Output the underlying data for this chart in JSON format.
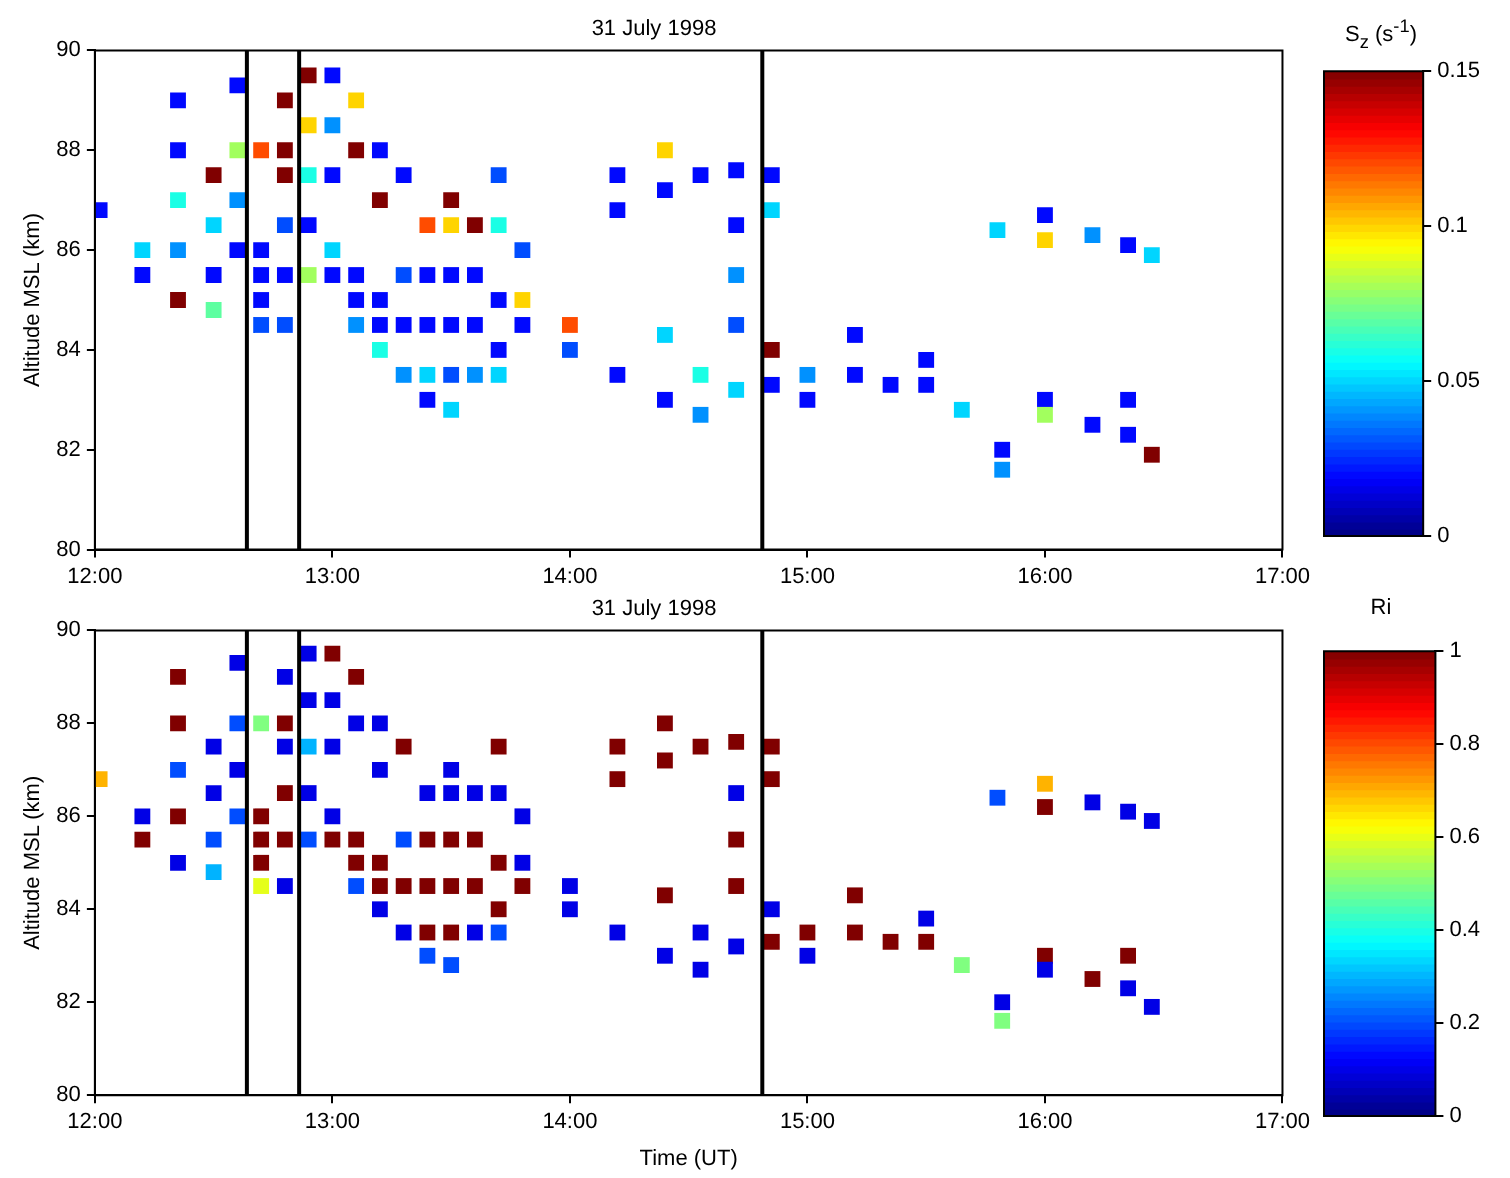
{
  "chart_data": [
    {
      "type": "scatter",
      "title": "31 July 1998",
      "ylabel": "Altitude MSL (km)",
      "clabel": "S$_{z}$ (s$^{-1}$)",
      "marker": "square",
      "grid": false,
      "xlim": [
        12,
        17
      ],
      "xticks": [
        {
          "value": 12,
          "label": "12:00"
        },
        {
          "value": 13,
          "label": "13:00"
        },
        {
          "value": 14,
          "label": "14:00"
        },
        {
          "value": 15,
          "label": "15:00"
        },
        {
          "value": 16,
          "label": "16:00"
        },
        {
          "value": 17,
          "label": "17:00"
        }
      ],
      "ylim": [
        80,
        90
      ],
      "yticks": [
        80,
        82,
        84,
        86,
        88,
        90
      ],
      "clim": [
        0,
        0.15
      ],
      "cticks": [
        0,
        0.05,
        0.1,
        0.15
      ],
      "ref_lines": [
        {
          "axis": "x",
          "value": 12.64,
          "color": "#000000"
        },
        {
          "axis": "x",
          "value": 12.86,
          "color": "#000000"
        },
        {
          "axis": "x",
          "value": 14.81,
          "color": "#000000"
        }
      ],
      "x": [
        12.02,
        12.2,
        12.2,
        12.35,
        12.35,
        12.35,
        12.35,
        12.35,
        12.5,
        12.5,
        12.5,
        12.5,
        12.6,
        12.6,
        12.6,
        12.6,
        12.7,
        12.7,
        12.7,
        12.7,
        12.7,
        12.8,
        12.8,
        12.8,
        12.8,
        12.8,
        12.8,
        12.9,
        12.9,
        12.9,
        12.9,
        12.9,
        13.0,
        13.0,
        13.0,
        13.0,
        13.0,
        13.1,
        13.1,
        13.1,
        13.1,
        13.1,
        13.2,
        13.2,
        13.2,
        13.2,
        13.2,
        13.3,
        13.3,
        13.3,
        13.3,
        13.4,
        13.4,
        13.4,
        13.4,
        13.4,
        13.5,
        13.5,
        13.5,
        13.5,
        13.5,
        13.5,
        13.6,
        13.6,
        13.6,
        13.6,
        13.7,
        13.7,
        13.7,
        13.7,
        13.7,
        13.8,
        13.8,
        13.8,
        14.0,
        14.0,
        14.2,
        14.2,
        14.2,
        14.4,
        14.4,
        14.4,
        14.4,
        14.55,
        14.55,
        14.55,
        14.7,
        14.7,
        14.7,
        14.7,
        14.7,
        14.85,
        14.85,
        14.85,
        14.85,
        15.0,
        15.0,
        15.2,
        15.2,
        15.35,
        15.5,
        15.5,
        15.65,
        15.82,
        15.82,
        15.8,
        16.0,
        16.0,
        16.0,
        16.0,
        16.2,
        16.2,
        16.35,
        16.35,
        16.35,
        16.45,
        16.45
      ],
      "values": [
        86.8,
        86,
        85.5,
        89,
        88,
        87,
        86,
        85,
        87.5,
        86.5,
        85.5,
        84.8,
        89.3,
        88,
        87,
        86,
        88,
        86,
        85.5,
        85,
        84.5,
        89,
        88,
        87.5,
        86.5,
        85.5,
        84.5,
        89.5,
        88.5,
        87.5,
        86.5,
        85.5,
        89.5,
        88.5,
        87.5,
        86,
        85.5,
        89,
        88,
        85.5,
        85,
        84.5,
        88,
        87,
        85,
        84.5,
        84,
        87.5,
        85.5,
        84.5,
        83.5,
        86.5,
        85.5,
        84.5,
        83.5,
        83,
        87,
        86.5,
        85.5,
        84.5,
        83.5,
        82.8,
        86.5,
        85.5,
        84.5,
        83.5,
        87.5,
        86.5,
        85,
        84,
        83.5,
        86,
        85,
        84.5,
        84.5,
        84,
        87.5,
        86.8,
        83.5,
        88,
        87.2,
        84.3,
        83,
        87.5,
        83.5,
        82.7,
        87.6,
        86.5,
        85.5,
        84.5,
        83.2,
        87.5,
        86.8,
        84,
        83.3,
        83.5,
        83,
        84.3,
        83.5,
        83.3,
        83.8,
        83.3,
        82.8,
        82,
        81.6,
        86.4,
        86.7,
        86.2,
        83,
        82.7,
        86.3,
        82.5,
        86.1,
        83,
        82.3,
        85.9,
        81.9
      ],
      "cvalues": [
        0.02,
        0.05,
        0.02,
        0.02,
        0.02,
        0.06,
        0.04,
        0.15,
        0.15,
        0.05,
        0.02,
        0.07,
        0.02,
        0.08,
        0.04,
        0.02,
        0.12,
        0.02,
        0.02,
        0.02,
        0.03,
        0.15,
        0.15,
        0.15,
        0.03,
        0.02,
        0.03,
        0.15,
        0.1,
        0.06,
        0.02,
        0.08,
        0.02,
        0.04,
        0.02,
        0.05,
        0.02,
        0.1,
        0.15,
        0.02,
        0.02,
        0.04,
        0.02,
        0.15,
        0.02,
        0.02,
        0.06,
        0.02,
        0.03,
        0.02,
        0.04,
        0.12,
        0.02,
        0.02,
        0.05,
        0.02,
        0.15,
        0.1,
        0.02,
        0.02,
        0.03,
        0.05,
        0.15,
        0.02,
        0.02,
        0.04,
        0.03,
        0.06,
        0.02,
        0.02,
        0.05,
        0.03,
        0.1,
        0.02,
        0.12,
        0.03,
        0.02,
        0.02,
        0.02,
        0.1,
        0.02,
        0.05,
        0.02,
        0.02,
        0.06,
        0.04,
        0.02,
        0.02,
        0.04,
        0.03,
        0.05,
        0.02,
        0.05,
        0.15,
        0.02,
        0.04,
        0.02,
        0.02,
        0.02,
        0.02,
        0.02,
        0.02,
        0.05,
        0.02,
        0.04,
        0.05,
        0.02,
        0.1,
        0.02,
        0.08,
        0.04,
        0.02,
        0.02,
        0.02,
        0.02,
        0.05,
        0.15
      ]
    },
    {
      "type": "scatter",
      "title": "31 July 1998",
      "xlabel": "Time (UT)",
      "ylabel": "Altitude MSL (km)",
      "clabel": "Ri",
      "marker": "square",
      "grid": false,
      "xlim": [
        12,
        17
      ],
      "xticks": [
        {
          "value": 12,
          "label": "12:00"
        },
        {
          "value": 13,
          "label": "13:00"
        },
        {
          "value": 14,
          "label": "14:00"
        },
        {
          "value": 15,
          "label": "15:00"
        },
        {
          "value": 16,
          "label": "16:00"
        },
        {
          "value": 17,
          "label": "17:00"
        }
      ],
      "ylim": [
        80,
        90
      ],
      "yticks": [
        80,
        82,
        84,
        86,
        88,
        90
      ],
      "clim": [
        0,
        1
      ],
      "cticks": [
        0,
        0.2,
        0.4,
        0.6,
        0.8,
        1
      ],
      "ref_lines": [
        {
          "axis": "x",
          "value": 12.64,
          "color": "#000000"
        },
        {
          "axis": "x",
          "value": 12.86,
          "color": "#000000"
        },
        {
          "axis": "x",
          "value": 14.81,
          "color": "#000000"
        }
      ],
      "x": [
        12.02,
        12.2,
        12.2,
        12.35,
        12.35,
        12.35,
        12.35,
        12.35,
        12.5,
        12.5,
        12.5,
        12.5,
        12.6,
        12.6,
        12.6,
        12.6,
        12.7,
        12.7,
        12.7,
        12.7,
        12.7,
        12.8,
        12.8,
        12.8,
        12.8,
        12.8,
        12.8,
        12.9,
        12.9,
        12.9,
        12.9,
        12.9,
        13.0,
        13.0,
        13.0,
        13.0,
        13.0,
        13.1,
        13.1,
        13.1,
        13.1,
        13.1,
        13.2,
        13.2,
        13.2,
        13.2,
        13.2,
        13.3,
        13.3,
        13.3,
        13.3,
        13.4,
        13.4,
        13.4,
        13.4,
        13.4,
        13.5,
        13.5,
        13.5,
        13.5,
        13.5,
        13.5,
        13.6,
        13.6,
        13.6,
        13.6,
        13.7,
        13.7,
        13.7,
        13.7,
        13.7,
        13.8,
        13.8,
        13.8,
        14.0,
        14.0,
        14.2,
        14.2,
        14.2,
        14.4,
        14.4,
        14.4,
        14.4,
        14.55,
        14.55,
        14.55,
        14.7,
        14.7,
        14.7,
        14.7,
        14.7,
        14.85,
        14.85,
        14.85,
        14.85,
        15.0,
        15.0,
        15.2,
        15.2,
        15.35,
        15.5,
        15.5,
        15.65,
        15.82,
        15.82,
        15.8,
        16.0,
        16.0,
        16.0,
        16.0,
        16.2,
        16.2,
        16.35,
        16.35,
        16.35,
        16.45,
        16.45
      ],
      "values": [
        86.8,
        86,
        85.5,
        89,
        88,
        87,
        86,
        85,
        87.5,
        86.5,
        85.5,
        84.8,
        89.3,
        88,
        87,
        86,
        88,
        86,
        85.5,
        85,
        84.5,
        89,
        88,
        87.5,
        86.5,
        85.5,
        84.5,
        89.5,
        88.5,
        87.5,
        86.5,
        85.5,
        89.5,
        88.5,
        87.5,
        86,
        85.5,
        89,
        88,
        85.5,
        85,
        84.5,
        88,
        87,
        85,
        84.5,
        84,
        87.5,
        85.5,
        84.5,
        83.5,
        86.5,
        85.5,
        84.5,
        83.5,
        83,
        87,
        86.5,
        85.5,
        84.5,
        83.5,
        82.8,
        86.5,
        85.5,
        84.5,
        83.5,
        87.5,
        86.5,
        85,
        84,
        83.5,
        86,
        85,
        84.5,
        84.5,
        84,
        87.5,
        86.8,
        83.5,
        88,
        87.2,
        84.3,
        83,
        87.5,
        83.5,
        82.7,
        87.6,
        86.5,
        85.5,
        84.5,
        83.2,
        87.5,
        86.8,
        84,
        83.3,
        83.5,
        83,
        84.3,
        83.5,
        83.3,
        83.8,
        83.3,
        82.8,
        82,
        81.6,
        86.4,
        86.7,
        86.2,
        83,
        82.7,
        86.3,
        82.5,
        86.1,
        83,
        82.3,
        85.9,
        81.9
      ],
      "cvalues": [
        0.7,
        0.1,
        1,
        1,
        1,
        0.2,
        1,
        0.1,
        0.1,
        0.1,
        0.2,
        0.3,
        0.1,
        0.2,
        0.1,
        0.2,
        0.5,
        1,
        1,
        1,
        0.6,
        0.1,
        1,
        0.1,
        1,
        1,
        0.1,
        0.1,
        0.1,
        0.3,
        0.1,
        0.2,
        1,
        0.1,
        0.1,
        0.1,
        1,
        1,
        0.1,
        1,
        1,
        0.2,
        0.1,
        0.1,
        1,
        1,
        0.1,
        1,
        0.2,
        1,
        0.1,
        0.1,
        1,
        1,
        1,
        0.2,
        0.1,
        0.1,
        1,
        1,
        1,
        0.2,
        0.1,
        1,
        1,
        0.1,
        1,
        0.1,
        1,
        1,
        0.2,
        0.1,
        0.1,
        1,
        0.1,
        0.1,
        1,
        1,
        0.1,
        1,
        1,
        1,
        0.1,
        1,
        0.1,
        0.1,
        1,
        0.1,
        1,
        1,
        0.1,
        1,
        1,
        0.1,
        1,
        1,
        0.1,
        1,
        1,
        1,
        0.1,
        1,
        0.5,
        0.1,
        0.5,
        0.2,
        0.7,
        1,
        1,
        0.1,
        0.1,
        1,
        0.1,
        1,
        0.1,
        0.1,
        0.1
      ]
    }
  ]
}
